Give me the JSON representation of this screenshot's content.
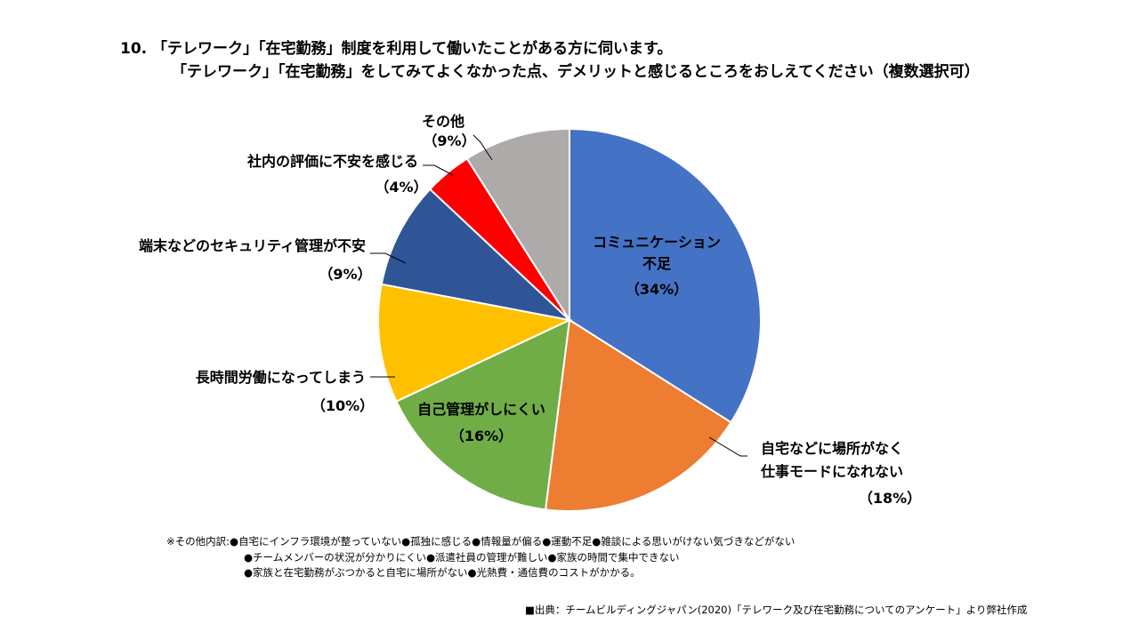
{
  "title": {
    "line1": "10. 「テレワーク」「在宅勤務」制度を利用して働いたことがある方に伺います。",
    "line2": "「テレワーク」「在宅勤務」をしてみてよくなかった点、デメリットと感じるところをおしえてください（複数選択可）"
  },
  "chart_data": {
    "type": "pie",
    "slices": [
      {
        "name_lines": [
          "コミュニケーション",
          "不足"
        ],
        "pct_label": "（34%）",
        "value": 34,
        "color": "#4472C4"
      },
      {
        "name_lines": [
          "自宅などに場所がなく",
          "仕事モードになれない"
        ],
        "pct_label": "（18%）",
        "value": 18,
        "color": "#ED7D31"
      },
      {
        "name_lines": [
          "自己管理がしにくい"
        ],
        "pct_label": "（16%）",
        "value": 16,
        "color": "#70AD47"
      },
      {
        "name_lines": [
          "長時間労働になってしまう"
        ],
        "pct_label": "（10%）",
        "value": 10,
        "color": "#FFC000"
      },
      {
        "name_lines": [
          "端末などのセキュリティ管理が不安"
        ],
        "pct_label": "（9%）",
        "value": 9,
        "color": "#2F5597"
      },
      {
        "name_lines": [
          "社内の評価に不安を感じる"
        ],
        "pct_label": "（4%）",
        "value": 4,
        "color": "#FF0000"
      },
      {
        "name_lines": [
          "その他"
        ],
        "pct_label": "（9%）",
        "value": 9,
        "color": "#AEAAAA"
      }
    ]
  },
  "notes": {
    "line1": "※その他内訳:●自宅にインフラ環境が整っていない●孤独に感じる●情報量が偏る●運動不足●雑談による思いがけない気づきなどがない",
    "line2": "●チームメンバーの状況が分かりにくい●派遣社員の管理が難しい●家族の時間で集中できない",
    "line3": "●家族と在宅勤務がぶつかると自宅に場所がない●光熱費・通信費のコストがかかる。"
  },
  "source": "■出典：チームビルディングジャパン(2020)「テレワーク及び在宅勤務についてのアンケート」より弊社作成"
}
